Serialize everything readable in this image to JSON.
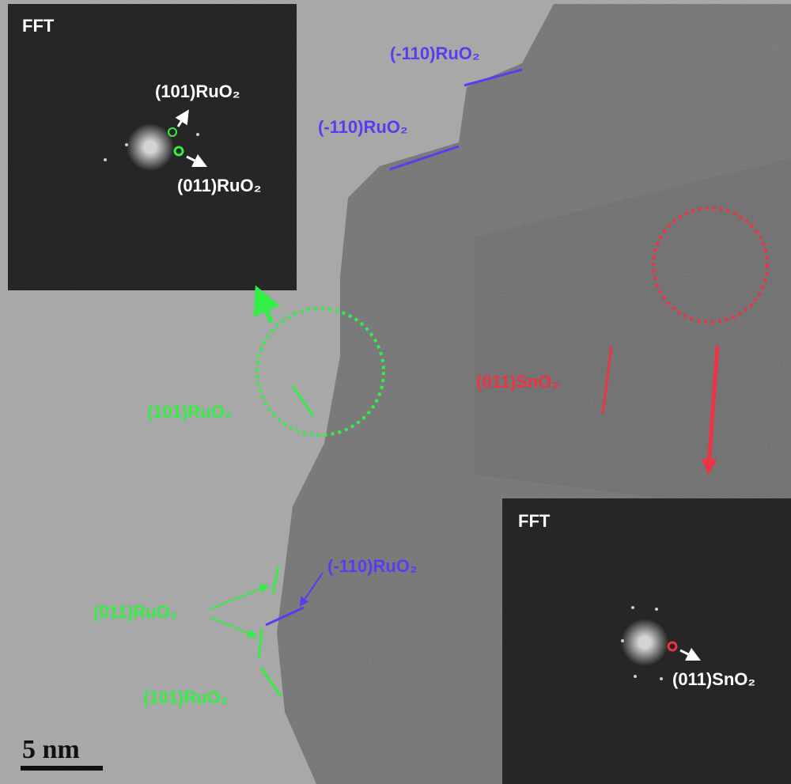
{
  "insets": [
    {
      "title": "FFT",
      "labels": [
        "(101)RuO₂",
        "(011)RuO₂"
      ]
    },
    {
      "title": "FFT",
      "labels": [
        "(011)SnO₂"
      ]
    }
  ],
  "annotations": [
    "(-110)RuO₂",
    "(-110)RuO₂",
    "(101)RuO₂",
    "(011)SnO₂",
    "(-110)RuO₂",
    "(011)RuO₂",
    "(101)RuO₂"
  ],
  "scale_bar": "5 nm"
}
